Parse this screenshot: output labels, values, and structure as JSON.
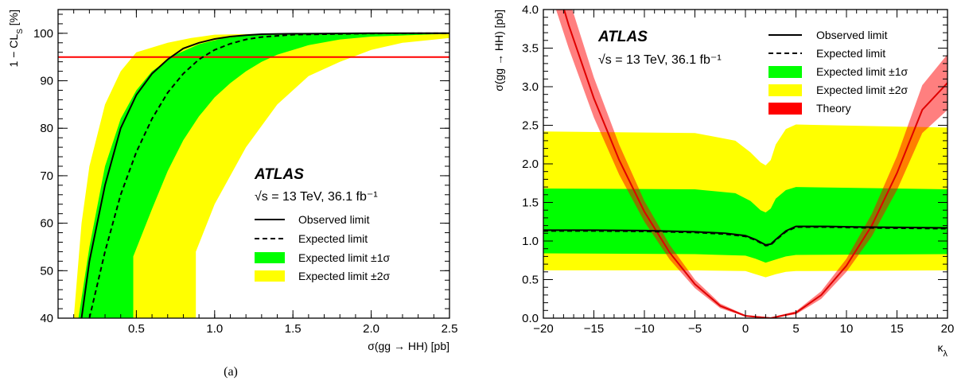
{
  "chart_data": [
    {
      "type": "line",
      "panel_label": "(a)",
      "xlabel": "σ(gg → HH) [pb]",
      "ylabel": "1 − CL_S [%]",
      "xlim": [
        0.0,
        2.5
      ],
      "ylim": [
        40,
        105
      ],
      "x_ticks": [
        "0.5",
        "1.0",
        "1.5",
        "2.0",
        "2.5"
      ],
      "x_tick_values": [
        0.5,
        1.0,
        1.5,
        2.0,
        2.5
      ],
      "y_ticks": [
        "40",
        "50",
        "60",
        "70",
        "80",
        "90",
        "100"
      ],
      "y_tick_values": [
        40,
        50,
        60,
        70,
        80,
        90,
        100
      ],
      "experiment": "ATLAS",
      "energy_label": "√s = 13 TeV, 36.1 fb⁻¹",
      "legend": [
        {
          "label": "Observed limit",
          "style": "solid-line"
        },
        {
          "label": "Expected limit",
          "style": "dashed-line"
        },
        {
          "label": "Expected limit ±1σ",
          "style": "fill",
          "color": "#00ff00"
        },
        {
          "label": "Expected limit ±2σ",
          "style": "fill",
          "color": "#ffff00"
        }
      ],
      "reference_line": {
        "y": 95,
        "color": "#ff0000"
      },
      "series": [
        {
          "name": "Observed limit",
          "color": "#000000",
          "dash": false,
          "points": [
            [
              0.15,
              40
            ],
            [
              0.2,
              52
            ],
            [
              0.3,
              68
            ],
            [
              0.4,
              80
            ],
            [
              0.5,
              87
            ],
            [
              0.6,
              91.5
            ],
            [
              0.7,
              94.5
            ],
            [
              0.8,
              96.8
            ],
            [
              0.9,
              98
            ],
            [
              1.0,
              98.8
            ],
            [
              1.1,
              99.3
            ],
            [
              1.2,
              99.6
            ],
            [
              1.3,
              99.8
            ],
            [
              1.5,
              99.9
            ],
            [
              2.0,
              100
            ],
            [
              2.5,
              100
            ]
          ]
        },
        {
          "name": "Expected limit",
          "color": "#000000",
          "dash": true,
          "points": [
            [
              0.2,
              40
            ],
            [
              0.25,
              47
            ],
            [
              0.3,
              54
            ],
            [
              0.4,
              66
            ],
            [
              0.5,
              75
            ],
            [
              0.6,
              82
            ],
            [
              0.7,
              87.5
            ],
            [
              0.8,
              91.5
            ],
            [
              0.9,
              94.5
            ],
            [
              1.0,
              96.5
            ],
            [
              1.1,
              97.8
            ],
            [
              1.2,
              98.7
            ],
            [
              1.3,
              99.2
            ],
            [
              1.5,
              99.7
            ],
            [
              2.0,
              99.95
            ],
            [
              2.5,
              100
            ]
          ]
        }
      ],
      "bands": [
        {
          "name": "Expected limit ±2σ",
          "color": "#ffff00",
          "upper": [
            [
              0.1,
              40
            ],
            [
              0.15,
              60
            ],
            [
              0.2,
              72
            ],
            [
              0.3,
              85
            ],
            [
              0.4,
              92
            ],
            [
              0.5,
              96
            ],
            [
              0.7,
              98
            ],
            [
              0.85,
              99
            ],
            [
              1.0,
              99.7
            ],
            [
              1.5,
              100
            ],
            [
              2.5,
              100
            ]
          ],
          "lower": [
            [
              0.88,
              40
            ],
            [
              0.88,
              54
            ],
            [
              1.0,
              64
            ],
            [
              1.2,
              76
            ],
            [
              1.4,
              85
            ],
            [
              1.6,
              91
            ],
            [
              1.8,
              94
            ],
            [
              2.0,
              96.5
            ],
            [
              2.2,
              98
            ],
            [
              2.5,
              99
            ]
          ]
        },
        {
          "name": "Expected limit ±1σ",
          "color": "#00ff00",
          "upper": [
            [
              0.13,
              40
            ],
            [
              0.2,
              55
            ],
            [
              0.3,
              72
            ],
            [
              0.4,
              82
            ],
            [
              0.5,
              88
            ],
            [
              0.6,
              92
            ],
            [
              0.75,
              95.5
            ],
            [
              0.9,
              97.7
            ],
            [
              1.05,
              98.9
            ],
            [
              1.2,
              99.5
            ],
            [
              1.5,
              99.9
            ],
            [
              2.5,
              100
            ]
          ],
          "lower": [
            [
              0.48,
              40
            ],
            [
              0.48,
              53
            ],
            [
              0.6,
              63
            ],
            [
              0.7,
              71
            ],
            [
              0.8,
              77.5
            ],
            [
              0.9,
              82.5
            ],
            [
              1.0,
              86.5
            ],
            [
              1.1,
              89.5
            ],
            [
              1.2,
              92
            ],
            [
              1.3,
              94
            ],
            [
              1.4,
              95.5
            ],
            [
              1.6,
              97.5
            ],
            [
              1.8,
              98.7
            ],
            [
              2.0,
              99.3
            ],
            [
              2.5,
              99.9
            ]
          ]
        }
      ]
    },
    {
      "type": "line",
      "xlabel": "κ_λ",
      "ylabel": "σ(gg → HH) [pb]",
      "xlim": [
        -20,
        20
      ],
      "ylim": [
        0.0,
        4.0
      ],
      "x_ticks": [
        "−20",
        "−15",
        "−10",
        "−5",
        "0",
        "5",
        "10",
        "15",
        "20"
      ],
      "x_tick_values": [
        -20,
        -15,
        -10,
        -5,
        0,
        5,
        10,
        15,
        20
      ],
      "y_ticks": [
        "0.0",
        "0.5",
        "1.0",
        "1.5",
        "2.0",
        "2.5",
        "3.0",
        "3.5",
        "4.0"
      ],
      "y_tick_values": [
        0.0,
        0.5,
        1.0,
        1.5,
        2.0,
        2.5,
        3.0,
        3.5,
        4.0
      ],
      "experiment": "ATLAS",
      "energy_label": "√s = 13 TeV, 36.1 fb⁻¹",
      "legend": [
        {
          "label": "Observed limit",
          "style": "solid-line"
        },
        {
          "label": "Expected limit",
          "style": "dashed-line"
        },
        {
          "label": "Expected limit ±1σ",
          "style": "fill",
          "color": "#00ff00"
        },
        {
          "label": "Expected limit ±2σ",
          "style": "fill",
          "color": "#ffff00"
        },
        {
          "label": "Theory",
          "style": "fill",
          "color": "#ff0000"
        }
      ],
      "series": [
        {
          "name": "Observed limit",
          "color": "#000000",
          "dash": false,
          "points": [
            [
              -20,
              1.14
            ],
            [
              -15,
              1.14
            ],
            [
              -10,
              1.135
            ],
            [
              -5,
              1.12
            ],
            [
              -2,
              1.1
            ],
            [
              0,
              1.07
            ],
            [
              1,
              1.02
            ],
            [
              2,
              0.95
            ],
            [
              2.5,
              0.96
            ],
            [
              3,
              1.02
            ],
            [
              4,
              1.13
            ],
            [
              5,
              1.19
            ],
            [
              8,
              1.19
            ],
            [
              12,
              1.18
            ],
            [
              20,
              1.17
            ]
          ]
        },
        {
          "name": "Expected limit",
          "color": "#000000",
          "dash": true,
          "points": [
            [
              -20,
              1.13
            ],
            [
              -15,
              1.13
            ],
            [
              -10,
              1.125
            ],
            [
              -5,
              1.11
            ],
            [
              -2,
              1.09
            ],
            [
              0,
              1.06
            ],
            [
              1,
              1.01
            ],
            [
              2,
              0.94
            ],
            [
              2.5,
              0.95
            ],
            [
              3,
              1.01
            ],
            [
              4,
              1.12
            ],
            [
              5,
              1.18
            ],
            [
              8,
              1.18
            ],
            [
              12,
              1.17
            ],
            [
              20,
              1.16
            ]
          ]
        },
        {
          "name": "Theory",
          "color": "#e00000",
          "dash": false,
          "points": [
            [
              -20,
              4.9
            ],
            [
              -17.5,
              3.8
            ],
            [
              -15,
              2.85
            ],
            [
              -12.5,
              2.05
            ],
            [
              -10,
              1.38
            ],
            [
              -7.5,
              0.85
            ],
            [
              -5,
              0.44
            ],
            [
              -2.5,
              0.16
            ],
            [
              0,
              0.03
            ],
            [
              2.5,
              0.0
            ],
            [
              5,
              0.07
            ],
            [
              7.5,
              0.3
            ],
            [
              10,
              0.68
            ],
            [
              12.5,
              1.2
            ],
            [
              15,
              1.88
            ],
            [
              17.5,
              2.7
            ],
            [
              20,
              3.05
            ]
          ]
        }
      ],
      "bands": [
        {
          "name": "Expected limit ±2σ",
          "color": "#ffff00",
          "upper": [
            [
              -20,
              2.42
            ],
            [
              -5,
              2.4
            ],
            [
              -1,
              2.3
            ],
            [
              0.5,
              2.15
            ],
            [
              1.5,
              2.02
            ],
            [
              2,
              1.98
            ],
            [
              2.5,
              2.05
            ],
            [
              3,
              2.25
            ],
            [
              4,
              2.45
            ],
            [
              5,
              2.51
            ],
            [
              20,
              2.47
            ]
          ],
          "lower": [
            [
              -20,
              0.62
            ],
            [
              -5,
              0.62
            ],
            [
              0,
              0.61
            ],
            [
              1,
              0.57
            ],
            [
              2,
              0.53
            ],
            [
              3,
              0.57
            ],
            [
              4,
              0.6
            ],
            [
              5,
              0.61
            ],
            [
              20,
              0.62
            ]
          ]
        },
        {
          "name": "Expected limit ±1σ",
          "color": "#00ff00",
          "upper": [
            [
              -20,
              1.68
            ],
            [
              -5,
              1.67
            ],
            [
              -1,
              1.62
            ],
            [
              0.5,
              1.52
            ],
            [
              1.5,
              1.4
            ],
            [
              2,
              1.37
            ],
            [
              2.5,
              1.42
            ],
            [
              3,
              1.55
            ],
            [
              4,
              1.66
            ],
            [
              5,
              1.7
            ],
            [
              20,
              1.67
            ]
          ],
          "lower": [
            [
              -20,
              0.84
            ],
            [
              -5,
              0.83
            ],
            [
              0,
              0.81
            ],
            [
              1,
              0.77
            ],
            [
              2,
              0.72
            ],
            [
              3,
              0.76
            ],
            [
              4,
              0.8
            ],
            [
              5,
              0.82
            ],
            [
              20,
              0.83
            ]
          ]
        },
        {
          "name": "Theory",
          "color": "#ff0000",
          "opacity": 0.5,
          "upper": [
            [
              -20,
              5.3
            ],
            [
              -17.5,
              4.15
            ],
            [
              -15,
              3.12
            ],
            [
              -12.5,
              2.25
            ],
            [
              -10,
              1.52
            ],
            [
              -7.5,
              0.95
            ],
            [
              -5,
              0.5
            ],
            [
              -2.5,
              0.19
            ],
            [
              0,
              0.04
            ],
            [
              2.5,
              0.01
            ],
            [
              5,
              0.09
            ],
            [
              7.5,
              0.35
            ],
            [
              10,
              0.77
            ],
            [
              12.5,
              1.35
            ],
            [
              15,
              2.1
            ],
            [
              17.5,
              3.02
            ],
            [
              20,
              3.42
            ]
          ],
          "lower": [
            [
              -20,
              4.5
            ],
            [
              -17.5,
              3.5
            ],
            [
              -15,
              2.6
            ],
            [
              -12.5,
              1.86
            ],
            [
              -10,
              1.25
            ],
            [
              -7.5,
              0.76
            ],
            [
              -5,
              0.39
            ],
            [
              -2.5,
              0.13
            ],
            [
              0,
              0.02
            ],
            [
              2.5,
              0.0
            ],
            [
              5,
              0.05
            ],
            [
              7.5,
              0.25
            ],
            [
              10,
              0.6
            ],
            [
              12.5,
              1.06
            ],
            [
              15,
              1.66
            ],
            [
              17.5,
              2.4
            ],
            [
              20,
              2.7
            ]
          ]
        }
      ]
    }
  ]
}
